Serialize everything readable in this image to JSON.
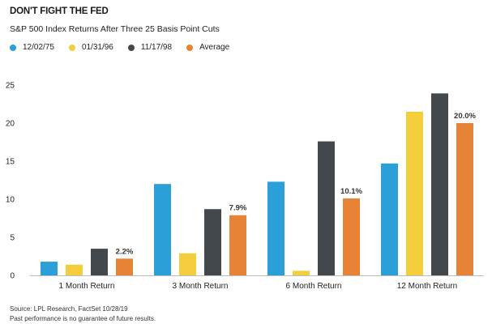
{
  "title": "DON'T FIGHT THE FED",
  "subtitle": "S&P 500 Index Returns After Three 25 Basis Point Cuts",
  "legend": [
    {
      "name": "12/02/75",
      "color": "#2a9fd8"
    },
    {
      "name": "01/31/96",
      "color": "#f4cd3c"
    },
    {
      "name": "11/17/98",
      "color": "#43484d"
    },
    {
      "name": "Average",
      "color": "#e68336"
    }
  ],
  "chart_data": {
    "type": "bar",
    "categories": [
      "1 Month Return",
      "3 Month Return",
      "6 Month Return",
      "12 Month Return"
    ],
    "series": [
      {
        "name": "12/02/75",
        "color": "#2a9fd8",
        "values": [
          1.8,
          12.0,
          12.3,
          14.7
        ]
      },
      {
        "name": "01/31/96",
        "color": "#f4cd3c",
        "values": [
          1.4,
          2.9,
          0.6,
          21.5
        ]
      },
      {
        "name": "11/17/98",
        "color": "#43484d",
        "values": [
          3.5,
          8.7,
          17.6,
          23.9
        ]
      },
      {
        "name": "Average",
        "color": "#e68336",
        "values": [
          2.2,
          7.9,
          10.1,
          20.0
        ]
      }
    ],
    "data_labels": [
      "2.2%",
      "7.9%",
      "10.1%",
      "20.0%"
    ],
    "ylim": [
      0,
      25
    ],
    "yticks": [
      0,
      5,
      10,
      15,
      20,
      25
    ],
    "grid": false,
    "legend_position": "top-left"
  },
  "footer": {
    "source": "Source: LPL Research, FactSet  10/28/19",
    "disclaimer": "Past performance is no guarantee of future results."
  }
}
